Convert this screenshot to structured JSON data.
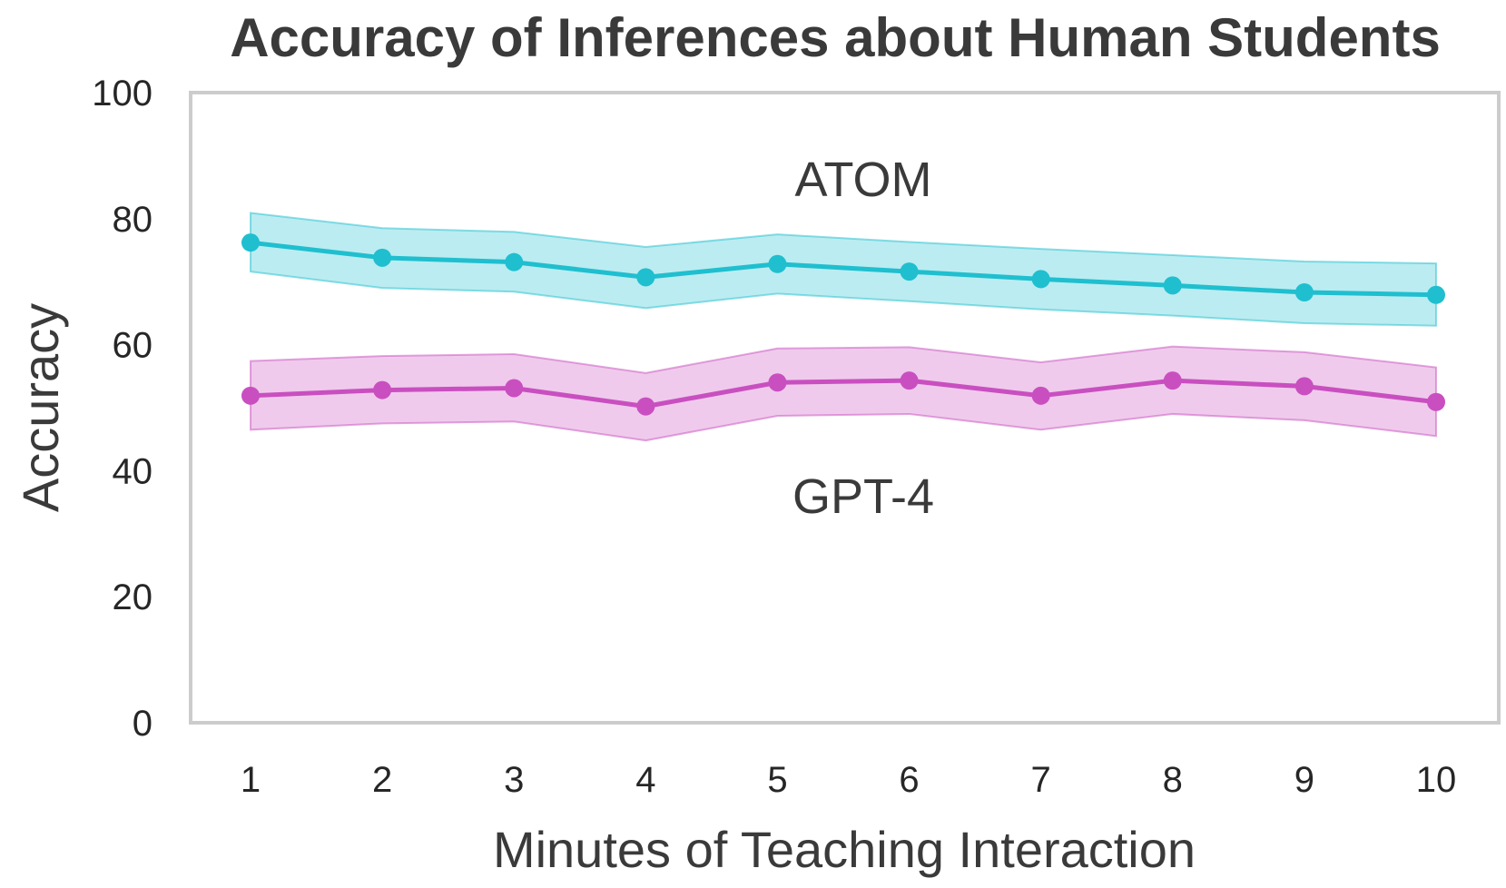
{
  "chart_data": {
    "type": "line",
    "title": "Accuracy of Inferences about Human Students",
    "xlabel": "Minutes of Teaching Interaction",
    "ylabel": "Accuracy",
    "x": [
      1,
      2,
      3,
      4,
      5,
      6,
      7,
      8,
      9,
      10
    ],
    "ylim": [
      0,
      100
    ],
    "yticks": [
      0,
      20,
      40,
      60,
      80,
      100
    ],
    "grid": false,
    "series": [
      {
        "name": "ATOM",
        "color": "#1fbfcf",
        "values": [
          76.2,
          73.8,
          73.1,
          70.7,
          72.8,
          71.6,
          70.4,
          69.4,
          68.3,
          67.9
        ],
        "lower": [
          71.6,
          69.0,
          68.4,
          65.8,
          68.1,
          66.9,
          65.6,
          64.6,
          63.4,
          63.0
        ],
        "upper": [
          80.9,
          78.5,
          77.9,
          75.5,
          77.5,
          76.3,
          75.2,
          74.2,
          73.2,
          72.9
        ]
      },
      {
        "name": "GPT-4",
        "color": "#c94fc0",
        "values": [
          51.9,
          52.8,
          53.1,
          50.2,
          54.0,
          54.3,
          51.9,
          54.3,
          53.4,
          50.9
        ],
        "lower": [
          46.5,
          47.5,
          47.8,
          44.8,
          48.7,
          49.0,
          46.5,
          49.0,
          48.0,
          45.5
        ],
        "upper": [
          57.4,
          58.2,
          58.5,
          55.5,
          59.4,
          59.6,
          57.2,
          59.7,
          58.8,
          56.4
        ]
      }
    ]
  }
}
